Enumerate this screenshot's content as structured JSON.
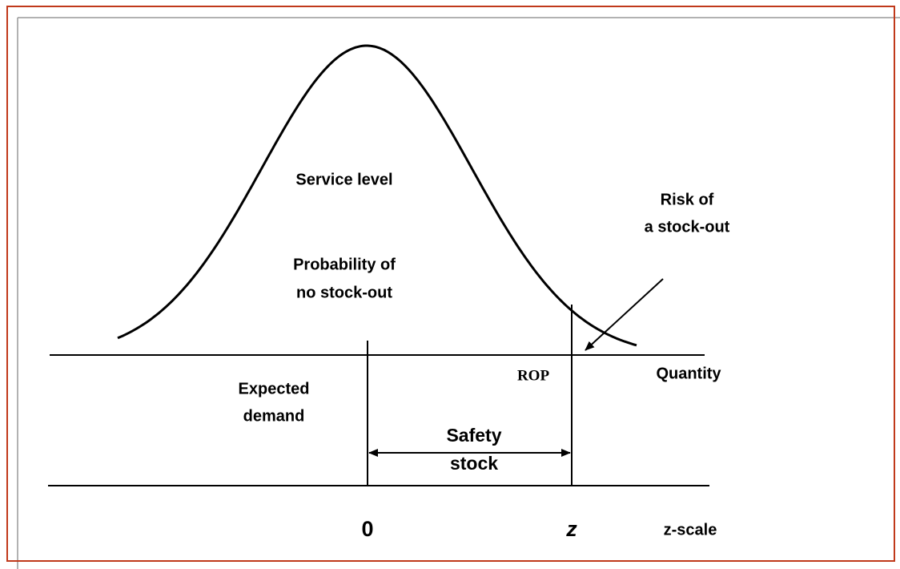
{
  "labels": {
    "service_level": "Service level",
    "probability": [
      "Probability of",
      "no stock-out"
    ],
    "risk": [
      "Risk of",
      "a stock-out"
    ],
    "rop": "ROP",
    "quantity": "Quantity",
    "expected": [
      "Expected",
      "demand"
    ],
    "safety": [
      "Safety",
      "stock"
    ],
    "zero": "0",
    "z": "z",
    "z_scale": "z-scale"
  }
}
